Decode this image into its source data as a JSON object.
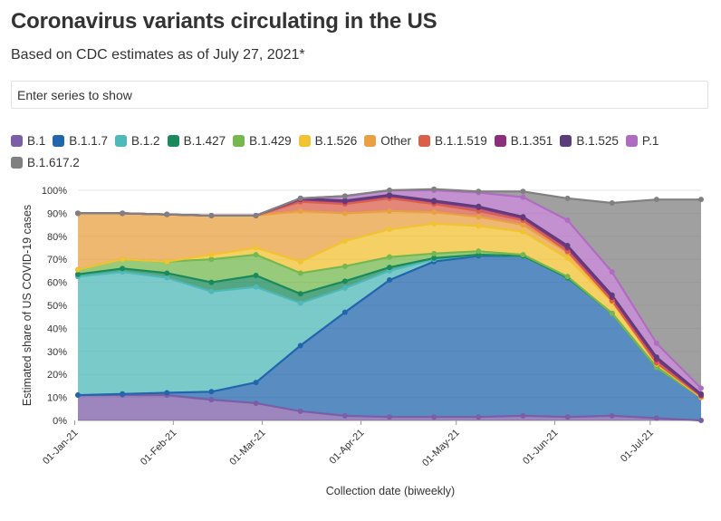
{
  "title": "Coronavirus variants circulating in the US",
  "subtitle": "Based on CDC estimates as of July 27, 2021*",
  "search": {
    "placeholder": "Enter series to show"
  },
  "chart_data": {
    "type": "area",
    "stacked": true,
    "xlabel": "Collection date (biweekly)",
    "ylabel": "Estimated share of US COVID-19 cases",
    "ylim": [
      0,
      100
    ],
    "y_ticks": [
      "0%",
      "10%",
      "20%",
      "30%",
      "40%",
      "50%",
      "60%",
      "70%",
      "80%",
      "90%",
      "100%"
    ],
    "x_tick_labels": [
      "01-Jan-21",
      "01-Feb-21",
      "01-Mar-21",
      "01-Apr-21",
      "01-May-21",
      "01-Jun-21",
      "01-Jul-21"
    ],
    "x_ticks": [
      "2021-01-01",
      "2021-02-01",
      "2021-03-01",
      "2021-04-01",
      "2021-05-01",
      "2021-06-01",
      "2021-07-01"
    ],
    "x": [
      "2021-01-02",
      "2021-01-16",
      "2021-01-30",
      "2021-02-13",
      "2021-02-27",
      "2021-03-13",
      "2021-03-27",
      "2021-04-10",
      "2021-04-24",
      "2021-05-08",
      "2021-05-22",
      "2021-06-05",
      "2021-06-19",
      "2021-07-03",
      "2021-07-17"
    ],
    "legend_position": "top",
    "grid": true,
    "series": [
      {
        "name": "B.1",
        "color": "#7b5ea7",
        "values": [
          11,
          11,
          11,
          9,
          7.5,
          4,
          2,
          1.5,
          1.5,
          1.5,
          2,
          1.5,
          2,
          1,
          0
        ]
      },
      {
        "name": "B.1.1.7",
        "color": "#2166ac",
        "values": [
          0,
          0.5,
          1,
          3.5,
          9,
          28.5,
          45,
          59.5,
          67.5,
          70,
          69.5,
          60.5,
          44.5,
          22,
          10
        ]
      },
      {
        "name": "B.1.2",
        "color": "#4fb8b8",
        "values": [
          51.5,
          53,
          50,
          43.5,
          41.5,
          18.5,
          10.5,
          4,
          1,
          0.5,
          0,
          0,
          0,
          0,
          0
        ]
      },
      {
        "name": "B.1.427",
        "color": "#1a8a5a",
        "values": [
          1,
          1.5,
          2,
          4,
          5,
          4,
          3,
          1.5,
          0.5,
          0,
          0,
          0,
          0,
          0,
          0
        ]
      },
      {
        "name": "B.1.429",
        "color": "#74b84f",
        "values": [
          2,
          4,
          5,
          10,
          9,
          9,
          6.5,
          4.5,
          2,
          1.5,
          0.5,
          0.5,
          0,
          0,
          0
        ]
      },
      {
        "name": "B.1.526",
        "color": "#f1c232",
        "values": [
          0,
          0,
          0,
          2,
          3,
          5,
          11,
          12,
          13,
          11,
          10,
          8,
          5,
          1.5,
          0
        ]
      },
      {
        "name": "Other",
        "color": "#e8a042",
        "values": [
          24.5,
          20,
          20.5,
          17,
          14,
          22,
          12,
          8,
          5,
          4,
          3,
          2.5,
          0.5,
          0.5,
          0.5
        ]
      },
      {
        "name": "B.1.1.519",
        "color": "#d95f4b",
        "values": [
          0,
          0,
          0,
          0,
          0,
          4,
          4,
          5.5,
          3.5,
          2.5,
          2,
          0.5,
          0,
          0,
          0
        ]
      },
      {
        "name": "B.1.351",
        "color": "#8b2f7a",
        "values": [
          0,
          0,
          0,
          0,
          0,
          1,
          1,
          1,
          1,
          1.5,
          1,
          1.5,
          1.5,
          1.5,
          0.5
        ]
      },
      {
        "name": "B.1.525",
        "color": "#5c3d7a",
        "values": [
          0,
          0,
          0,
          0,
          0,
          0.5,
          0.5,
          0.5,
          0.5,
          0.5,
          0.5,
          1,
          1,
          1,
          0.5
        ]
      },
      {
        "name": "P.1",
        "color": "#b06cc0",
        "values": [
          0,
          0,
          0,
          0,
          0,
          0,
          2,
          2,
          4.5,
          6,
          8.5,
          11,
          10,
          6,
          2.5
        ]
      },
      {
        "name": "B.1.617.2",
        "color": "#808080",
        "values": [
          0,
          0,
          0,
          0,
          0,
          0,
          0,
          0,
          0.5,
          0.5,
          2.5,
          9.5,
          30,
          62.5,
          82
        ]
      }
    ]
  }
}
